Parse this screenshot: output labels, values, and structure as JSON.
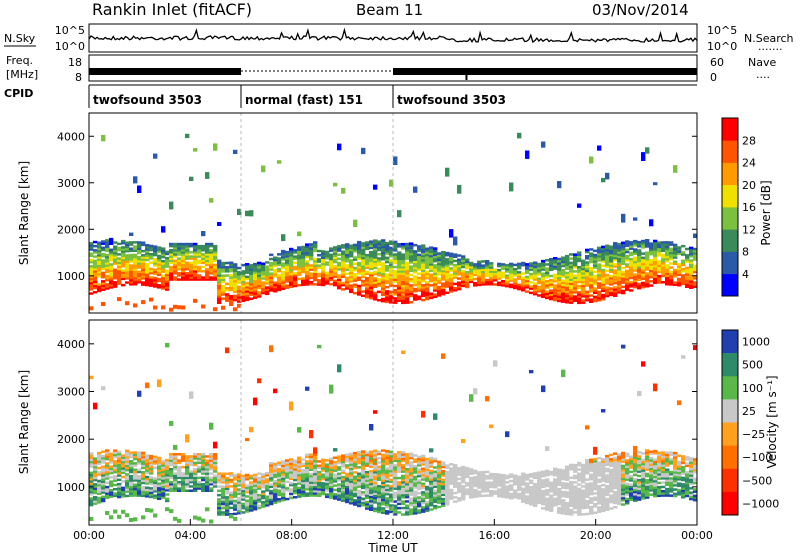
{
  "header": {
    "station": "Rankin Inlet (fitACF)",
    "beam": "Beam 11",
    "date": "03/Nov/2014"
  },
  "noise_panel": {
    "left_label": "N.Sky",
    "right_label": "N.Search",
    "right_dots": ".......",
    "left_ticks": [
      "10^5",
      "10^0"
    ],
    "right_ticks": [
      "10^5",
      "10^0"
    ]
  },
  "freq_panel": {
    "left_label_1": "Freq.",
    "left_label_2": "[MHz]",
    "left_ticks": [
      "18",
      "8"
    ],
    "right_ticks": [
      "60",
      "0"
    ],
    "right_label": "Nave",
    "right_dots": "...."
  },
  "cpid": {
    "label": "CPID",
    "segments": [
      {
        "label": "twofsound 3503",
        "start_h": 0,
        "end_h": 6
      },
      {
        "label": "normal (fast) 151",
        "start_h": 6,
        "end_h": 12
      },
      {
        "label": "twofsound 3503",
        "start_h": 12,
        "end_h": 24
      }
    ]
  },
  "colors": {
    "power": [
      "#0000ff",
      "#2a5aa8",
      "#3a8a5a",
      "#7cc040",
      "#f0e000",
      "#ff9a00",
      "#ff5500",
      "#ff0000"
    ],
    "velocity": [
      "#2040b0",
      "#2f8a6a",
      "#5ab84a",
      "#c8c8c8",
      "#ffa020",
      "#ff7000",
      "#ff3000",
      "#ff0000"
    ]
  },
  "chart_data": [
    {
      "type": "heatmap",
      "name": "power",
      "ylabel": "Slant Range [km]",
      "xlim_hours": [
        0,
        24
      ],
      "ylim_km": [
        200,
        4500
      ],
      "yticks": [
        1000,
        2000,
        3000,
        4000
      ],
      "colorbar": {
        "label": "Power [dB]",
        "ticks": [
          "4",
          "8",
          "12",
          "16",
          "20",
          "24",
          "28"
        ],
        "range": [
          0,
          32
        ]
      }
    },
    {
      "type": "heatmap",
      "name": "velocity",
      "ylabel": "Slant Range [km]",
      "xlabel": "Time UT",
      "xlim_hours": [
        0,
        24
      ],
      "ylim_km": [
        200,
        4500
      ],
      "yticks": [
        1000,
        2000,
        3000,
        4000
      ],
      "xticks": [
        "00:00",
        "04:00",
        "08:00",
        "12:00",
        "16:00",
        "20:00",
        "00:00"
      ],
      "colorbar": {
        "label": "Velocity [m s⁻¹]",
        "ticks": [
          "1000",
          "500",
          "100",
          "25",
          "−25",
          "−100",
          "−500",
          "−1000"
        ]
      }
    }
  ]
}
